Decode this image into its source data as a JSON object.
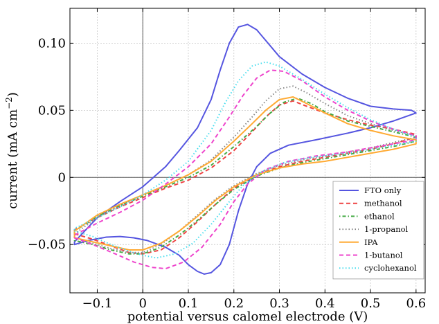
{
  "chart_data": {
    "type": "line",
    "xlabel": "potential versus calomel electrode (V)",
    "ylabel_main": "current (mA cm",
    "ylabel_sup": "−2",
    "ylabel_close": ")",
    "xlim": [
      -0.16,
      0.62
    ],
    "ylim": [
      -0.086,
      0.126
    ],
    "x_ticks": [
      -0.1,
      0,
      0.1,
      0.2,
      0.3,
      0.4,
      0.5,
      0.6
    ],
    "x_tick_labels": [
      "−0.1",
      "0",
      "0.1",
      "0.2",
      "0.3",
      "0.4",
      "0.5",
      "0.6"
    ],
    "y_ticks": [
      -0.05,
      0,
      0.05,
      0.1
    ],
    "y_tick_labels": [
      "−0.05",
      "0",
      "0.05",
      "0.10"
    ],
    "grid": true,
    "legend_position": "bottom-right",
    "series": [
      {
        "name": "FTO only",
        "color": "#5555e0",
        "dash": "solid",
        "points": [
          [
            -0.15,
            -0.05
          ],
          [
            -0.12,
            -0.047
          ],
          [
            -0.08,
            -0.0445
          ],
          [
            -0.05,
            -0.044
          ],
          [
            -0.02,
            -0.045
          ],
          [
            0.01,
            -0.047
          ],
          [
            0.05,
            -0.052
          ],
          [
            0.08,
            -0.058
          ],
          [
            0.1,
            -0.065
          ],
          [
            0.12,
            -0.07
          ],
          [
            0.135,
            -0.072
          ],
          [
            0.15,
            -0.071
          ],
          [
            0.17,
            -0.065
          ],
          [
            0.19,
            -0.05
          ],
          [
            0.21,
            -0.025
          ],
          [
            0.23,
            -0.005
          ],
          [
            0.25,
            0.008
          ],
          [
            0.28,
            0.018
          ],
          [
            0.32,
            0.024
          ],
          [
            0.38,
            0.028
          ],
          [
            0.45,
            0.033
          ],
          [
            0.5,
            0.037
          ],
          [
            0.55,
            0.042
          ],
          [
            0.6,
            0.048
          ],
          [
            0.59,
            0.05
          ],
          [
            0.55,
            0.051
          ],
          [
            0.5,
            0.053
          ],
          [
            0.45,
            0.059
          ],
          [
            0.4,
            0.067
          ],
          [
            0.35,
            0.077
          ],
          [
            0.3,
            0.09
          ],
          [
            0.27,
            0.102
          ],
          [
            0.25,
            0.11
          ],
          [
            0.23,
            0.114
          ],
          [
            0.21,
            0.112
          ],
          [
            0.19,
            0.1
          ],
          [
            0.17,
            0.08
          ],
          [
            0.15,
            0.058
          ],
          [
            0.12,
            0.037
          ],
          [
            0.08,
            0.02
          ],
          [
            0.05,
            0.008
          ],
          [
            0.0,
            -0.007
          ],
          [
            -0.05,
            -0.018
          ],
          [
            -0.1,
            -0.03
          ],
          [
            -0.15,
            -0.048
          ]
        ]
      },
      {
        "name": "methanol",
        "color": "#ee4444",
        "dash": "dashed",
        "points": [
          [
            -0.15,
            -0.042
          ],
          [
            -0.11,
            -0.046
          ],
          [
            -0.07,
            -0.051
          ],
          [
            -0.03,
            -0.056
          ],
          [
            0.0,
            -0.057
          ],
          [
            0.04,
            -0.054
          ],
          [
            0.08,
            -0.045
          ],
          [
            0.12,
            -0.033
          ],
          [
            0.16,
            -0.02
          ],
          [
            0.2,
            -0.008
          ],
          [
            0.25,
            0.002
          ],
          [
            0.3,
            0.008
          ],
          [
            0.35,
            0.012
          ],
          [
            0.4,
            0.015
          ],
          [
            0.45,
            0.018
          ],
          [
            0.5,
            0.021
          ],
          [
            0.55,
            0.025
          ],
          [
            0.6,
            0.03
          ],
          [
            0.6,
            0.032
          ],
          [
            0.55,
            0.036
          ],
          [
            0.5,
            0.039
          ],
          [
            0.45,
            0.043
          ],
          [
            0.4,
            0.048
          ],
          [
            0.36,
            0.053
          ],
          [
            0.33,
            0.057
          ],
          [
            0.3,
            0.054
          ],
          [
            0.27,
            0.045
          ],
          [
            0.24,
            0.034
          ],
          [
            0.2,
            0.02
          ],
          [
            0.15,
            0.007
          ],
          [
            0.1,
            -0.002
          ],
          [
            0.05,
            -0.008
          ],
          [
            0.0,
            -0.015
          ],
          [
            -0.05,
            -0.022
          ],
          [
            -0.1,
            -0.03
          ],
          [
            -0.15,
            -0.039
          ]
        ]
      },
      {
        "name": "ethanol",
        "color": "#44aa44",
        "dash": "dotdash",
        "points": [
          [
            -0.15,
            -0.047
          ],
          [
            -0.11,
            -0.05
          ],
          [
            -0.07,
            -0.054
          ],
          [
            -0.03,
            -0.057
          ],
          [
            0.0,
            -0.057
          ],
          [
            0.04,
            -0.052
          ],
          [
            0.08,
            -0.043
          ],
          [
            0.12,
            -0.032
          ],
          [
            0.16,
            -0.02
          ],
          [
            0.2,
            -0.009
          ],
          [
            0.25,
            0.001
          ],
          [
            0.3,
            0.007
          ],
          [
            0.35,
            0.011
          ],
          [
            0.4,
            0.014
          ],
          [
            0.45,
            0.017
          ],
          [
            0.5,
            0.02
          ],
          [
            0.55,
            0.023
          ],
          [
            0.6,
            0.027
          ],
          [
            0.6,
            0.03
          ],
          [
            0.55,
            0.034
          ],
          [
            0.5,
            0.038
          ],
          [
            0.45,
            0.042
          ],
          [
            0.4,
            0.049
          ],
          [
            0.37,
            0.055
          ],
          [
            0.34,
            0.059
          ],
          [
            0.31,
            0.056
          ],
          [
            0.28,
            0.048
          ],
          [
            0.25,
            0.038
          ],
          [
            0.2,
            0.023
          ],
          [
            0.15,
            0.009
          ],
          [
            0.1,
            0.0
          ],
          [
            0.05,
            -0.007
          ],
          [
            0.0,
            -0.014
          ],
          [
            -0.05,
            -0.021
          ],
          [
            -0.1,
            -0.029
          ],
          [
            -0.15,
            -0.04
          ]
        ]
      },
      {
        "name": "1-propanol",
        "color": "#888888",
        "dash": "dotted",
        "points": [
          [
            -0.15,
            -0.045
          ],
          [
            -0.11,
            -0.049
          ],
          [
            -0.07,
            -0.053
          ],
          [
            -0.03,
            -0.056
          ],
          [
            0.0,
            -0.056
          ],
          [
            0.04,
            -0.05
          ],
          [
            0.08,
            -0.04
          ],
          [
            0.12,
            -0.028
          ],
          [
            0.16,
            -0.016
          ],
          [
            0.2,
            -0.006
          ],
          [
            0.25,
            0.003
          ],
          [
            0.3,
            0.009
          ],
          [
            0.35,
            0.013
          ],
          [
            0.4,
            0.016
          ],
          [
            0.45,
            0.019
          ],
          [
            0.5,
            0.022
          ],
          [
            0.55,
            0.026
          ],
          [
            0.6,
            0.03
          ],
          [
            0.6,
            0.031
          ],
          [
            0.55,
            0.035
          ],
          [
            0.5,
            0.04
          ],
          [
            0.45,
            0.046
          ],
          [
            0.4,
            0.055
          ],
          [
            0.36,
            0.063
          ],
          [
            0.33,
            0.068
          ],
          [
            0.3,
            0.066
          ],
          [
            0.27,
            0.057
          ],
          [
            0.24,
            0.045
          ],
          [
            0.2,
            0.03
          ],
          [
            0.15,
            0.013
          ],
          [
            0.1,
            0.002
          ],
          [
            0.05,
            -0.006
          ],
          [
            0.0,
            -0.013
          ],
          [
            -0.05,
            -0.021
          ],
          [
            -0.1,
            -0.03
          ],
          [
            -0.15,
            -0.042
          ]
        ]
      },
      {
        "name": "IPA",
        "color": "#ffaa33",
        "dash": "solid",
        "points": [
          [
            -0.15,
            -0.045
          ],
          [
            -0.11,
            -0.048
          ],
          [
            -0.07,
            -0.051
          ],
          [
            -0.03,
            -0.054
          ],
          [
            0.0,
            -0.054
          ],
          [
            0.04,
            -0.049
          ],
          [
            0.08,
            -0.04
          ],
          [
            0.12,
            -0.029
          ],
          [
            0.16,
            -0.017
          ],
          [
            0.2,
            -0.007
          ],
          [
            0.25,
            0.002
          ],
          [
            0.3,
            0.007
          ],
          [
            0.35,
            0.01
          ],
          [
            0.4,
            0.012
          ],
          [
            0.45,
            0.015
          ],
          [
            0.5,
            0.018
          ],
          [
            0.55,
            0.021
          ],
          [
            0.6,
            0.025
          ],
          [
            0.6,
            0.028
          ],
          [
            0.55,
            0.031
          ],
          [
            0.5,
            0.035
          ],
          [
            0.45,
            0.04
          ],
          [
            0.4,
            0.048
          ],
          [
            0.36,
            0.055
          ],
          [
            0.33,
            0.06
          ],
          [
            0.3,
            0.058
          ],
          [
            0.27,
            0.05
          ],
          [
            0.24,
            0.04
          ],
          [
            0.2,
            0.027
          ],
          [
            0.15,
            0.012
          ],
          [
            0.1,
            0.002
          ],
          [
            0.05,
            -0.006
          ],
          [
            0.0,
            -0.013
          ],
          [
            -0.05,
            -0.02
          ],
          [
            -0.1,
            -0.028
          ],
          [
            -0.15,
            -0.04
          ]
        ]
      },
      {
        "name": "1-butanol",
        "color": "#ee44cc",
        "dash": "dashed",
        "points": [
          [
            -0.15,
            -0.045
          ],
          [
            -0.11,
            -0.05
          ],
          [
            -0.06,
            -0.057
          ],
          [
            -0.02,
            -0.063
          ],
          [
            0.02,
            -0.067
          ],
          [
            0.05,
            -0.068
          ],
          [
            0.09,
            -0.063
          ],
          [
            0.13,
            -0.052
          ],
          [
            0.17,
            -0.035
          ],
          [
            0.2,
            -0.018
          ],
          [
            0.23,
            -0.005
          ],
          [
            0.27,
            0.006
          ],
          [
            0.32,
            0.012
          ],
          [
            0.38,
            0.016
          ],
          [
            0.45,
            0.019
          ],
          [
            0.5,
            0.022
          ],
          [
            0.55,
            0.025
          ],
          [
            0.6,
            0.028
          ],
          [
            0.6,
            0.031
          ],
          [
            0.55,
            0.036
          ],
          [
            0.5,
            0.042
          ],
          [
            0.45,
            0.05
          ],
          [
            0.4,
            0.06
          ],
          [
            0.35,
            0.072
          ],
          [
            0.31,
            0.079
          ],
          [
            0.28,
            0.08
          ],
          [
            0.25,
            0.074
          ],
          [
            0.22,
            0.061
          ],
          [
            0.19,
            0.045
          ],
          [
            0.15,
            0.025
          ],
          [
            0.1,
            0.008
          ],
          [
            0.05,
            -0.005
          ],
          [
            0.0,
            -0.017
          ],
          [
            -0.05,
            -0.026
          ],
          [
            -0.1,
            -0.034
          ],
          [
            -0.15,
            -0.043
          ]
        ]
      },
      {
        "name": "cyclohexanol",
        "color": "#44ddee",
        "dash": "dotted",
        "points": [
          [
            -0.15,
            -0.04
          ],
          [
            -0.11,
            -0.044
          ],
          [
            -0.07,
            -0.05
          ],
          [
            -0.03,
            -0.055
          ],
          [
            0.0,
            -0.058
          ],
          [
            0.03,
            -0.06
          ],
          [
            0.07,
            -0.057
          ],
          [
            0.11,
            -0.049
          ],
          [
            0.15,
            -0.035
          ],
          [
            0.19,
            -0.018
          ],
          [
            0.22,
            -0.006
          ],
          [
            0.26,
            0.004
          ],
          [
            0.31,
            0.011
          ],
          [
            0.37,
            0.015
          ],
          [
            0.45,
            0.018
          ],
          [
            0.5,
            0.021
          ],
          [
            0.55,
            0.024
          ],
          [
            0.6,
            0.027
          ],
          [
            0.6,
            0.03
          ],
          [
            0.55,
            0.036
          ],
          [
            0.5,
            0.043
          ],
          [
            0.45,
            0.052
          ],
          [
            0.4,
            0.062
          ],
          [
            0.35,
            0.073
          ],
          [
            0.3,
            0.083
          ],
          [
            0.27,
            0.086
          ],
          [
            0.24,
            0.083
          ],
          [
            0.21,
            0.072
          ],
          [
            0.18,
            0.055
          ],
          [
            0.15,
            0.035
          ],
          [
            0.1,
            0.012
          ],
          [
            0.05,
            -0.002
          ],
          [
            0.0,
            -0.013
          ],
          [
            -0.05,
            -0.022
          ],
          [
            -0.1,
            -0.03
          ],
          [
            -0.15,
            -0.038
          ]
        ]
      }
    ]
  }
}
